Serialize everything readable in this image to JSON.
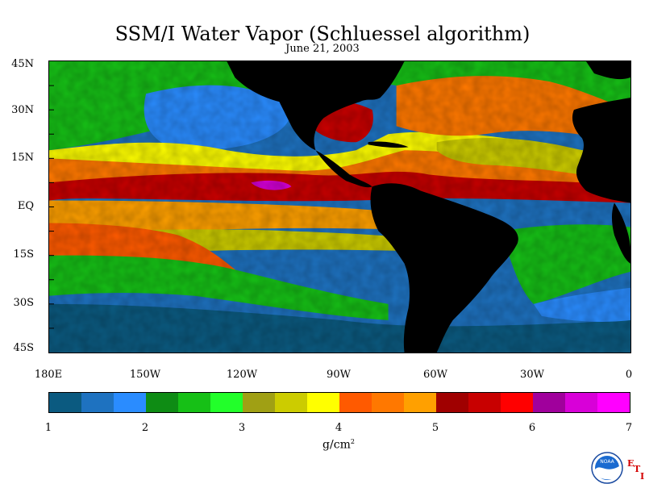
{
  "title": "SSM/I Water Vapor (Schluessel algorithm)",
  "subtitle": "June 21, 2003",
  "lat_labels": [
    "45N",
    "30N",
    "15N",
    "EQ",
    "15S",
    "30S",
    "45S"
  ],
  "lon_labels": [
    "180E",
    "150W",
    "120W",
    "90W",
    "60W",
    "30W",
    "0"
  ],
  "colorbar": {
    "colors": [
      "#0b5a80",
      "#1e72c0",
      "#2a8cff",
      "#0e8c14",
      "#16c016",
      "#22ff2a",
      "#a0a014",
      "#cccc00",
      "#ffff00",
      "#ff5a00",
      "#ff7800",
      "#ffa000",
      "#a00000",
      "#c80000",
      "#ff0000",
      "#a0009c",
      "#d800d8",
      "#ff00ff"
    ],
    "tick_labels": [
      "1",
      "2",
      "3",
      "4",
      "5",
      "6",
      "7"
    ],
    "units_base": "g/cm",
    "units_exp": "2"
  },
  "logo": {
    "icon": "noaa-logo-icon",
    "text": "NOAA",
    "letter1": "E",
    "letter2": "T",
    "letter3": "I"
  },
  "map_data": {
    "type": "heatmap",
    "lon_range": [
      -180,
      0
    ],
    "lat_range": [
      -45,
      45
    ],
    "land_color": "#000000",
    "min_value": 1,
    "max_value": 7
  }
}
